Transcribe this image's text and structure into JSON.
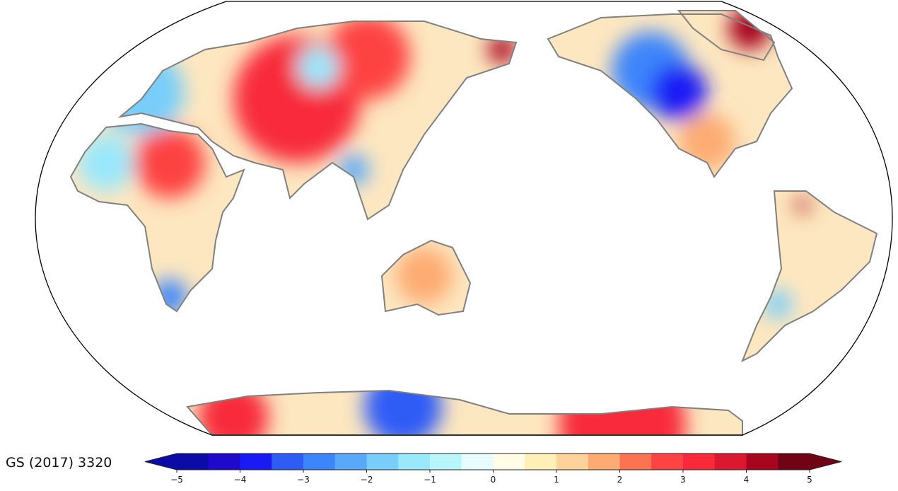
{
  "map": {
    "projection": "Robinson",
    "central_longitude": 150,
    "coastline_color": "#808080",
    "frame_color": "#000000"
  },
  "map_label": "GS (2017) 3320",
  "colorbar": {
    "min": -5,
    "max": 5,
    "step": 0.5,
    "extend": "both",
    "ticks": [
      "−5",
      "−4",
      "−3",
      "−2",
      "−1",
      "0",
      "1",
      "2",
      "3",
      "4",
      "5"
    ],
    "colors": [
      "#0b0ba8",
      "#2008cc",
      "#1a1af5",
      "#2e5cf5",
      "#3d85fa",
      "#5aa8f8",
      "#78cdfa",
      "#9ae8fc",
      "#b8f6fb",
      "#e6fcfd",
      "#fffde6",
      "#fff0b8",
      "#fed298",
      "#fdab72",
      "#fc7352",
      "#fd4343",
      "#f8293a",
      "#dc1830",
      "#a8061e",
      "#700414"
    ]
  }
}
